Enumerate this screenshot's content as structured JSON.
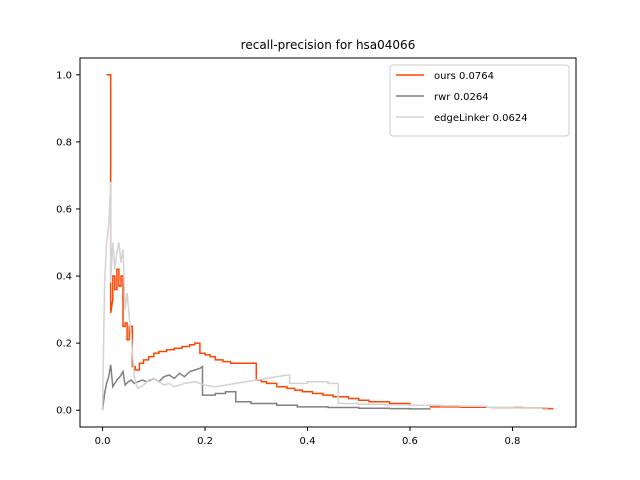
{
  "chart_data": {
    "type": "line",
    "title": "recall-precision for hsa04066",
    "xlabel": "",
    "ylabel": "",
    "xlim": [
      -0.044,
      0.924
    ],
    "ylim": [
      -0.05,
      1.05
    ],
    "xticks": [
      0.0,
      0.2,
      0.4,
      0.6,
      0.8
    ],
    "yticks": [
      0.0,
      0.2,
      0.4,
      0.6,
      0.8,
      1.0
    ],
    "xtick_labels": [
      "0.0",
      "0.2",
      "0.4",
      "0.6",
      "0.8"
    ],
    "ytick_labels": [
      "0.0",
      "0.2",
      "0.4",
      "0.6",
      "0.8",
      "1.0"
    ],
    "grid": false,
    "legend_position": "upper right",
    "series": [
      {
        "name": "ours 0.0764",
        "color": "#ff4500",
        "x": [
          0.008,
          0.008,
          0.016,
          0.016,
          0.016,
          0.016,
          0.02,
          0.02,
          0.024,
          0.024,
          0.028,
          0.028,
          0.032,
          0.032,
          0.036,
          0.036,
          0.04,
          0.04,
          0.044,
          0.044,
          0.048,
          0.048,
          0.052,
          0.052,
          0.058,
          0.058,
          0.064,
          0.064,
          0.072,
          0.072,
          0.08,
          0.08,
          0.09,
          0.09,
          0.1,
          0.1,
          0.11,
          0.11,
          0.125,
          0.125,
          0.14,
          0.14,
          0.155,
          0.155,
          0.17,
          0.17,
          0.18,
          0.18,
          0.19,
          0.19,
          0.2,
          0.2,
          0.21,
          0.21,
          0.22,
          0.22,
          0.235,
          0.235,
          0.25,
          0.25,
          0.27,
          0.27,
          0.3,
          0.3,
          0.31,
          0.31,
          0.32,
          0.32,
          0.34,
          0.34,
          0.36,
          0.36,
          0.375,
          0.375,
          0.39,
          0.39,
          0.41,
          0.41,
          0.43,
          0.43,
          0.45,
          0.45,
          0.48,
          0.48,
          0.5,
          0.5,
          0.52,
          0.52,
          0.56,
          0.56,
          0.6,
          0.6,
          0.64,
          0.64,
          0.7,
          0.7,
          0.76,
          0.76,
          0.82,
          0.82,
          0.86,
          0.86,
          0.88
        ],
        "y": [
          1.0,
          1.0,
          1.0,
          0.5,
          0.67,
          0.29,
          0.33,
          0.4,
          0.4,
          0.36,
          0.36,
          0.42,
          0.42,
          0.37,
          0.37,
          0.4,
          0.4,
          0.25,
          0.25,
          0.26,
          0.26,
          0.21,
          0.21,
          0.25,
          0.25,
          0.13,
          0.13,
          0.12,
          0.12,
          0.14,
          0.14,
          0.15,
          0.15,
          0.16,
          0.16,
          0.17,
          0.17,
          0.175,
          0.175,
          0.18,
          0.18,
          0.185,
          0.185,
          0.19,
          0.19,
          0.195,
          0.195,
          0.2,
          0.2,
          0.17,
          0.17,
          0.165,
          0.165,
          0.16,
          0.16,
          0.15,
          0.15,
          0.145,
          0.145,
          0.14,
          0.14,
          0.14,
          0.14,
          0.09,
          0.09,
          0.085,
          0.085,
          0.08,
          0.08,
          0.07,
          0.07,
          0.065,
          0.065,
          0.06,
          0.06,
          0.055,
          0.055,
          0.05,
          0.05,
          0.045,
          0.045,
          0.04,
          0.04,
          0.035,
          0.035,
          0.03,
          0.03,
          0.025,
          0.025,
          0.02,
          0.02,
          0.015,
          0.015,
          0.01,
          0.01,
          0.009,
          0.009,
          0.008,
          0.008,
          0.007,
          0.007,
          0.005,
          0.005
        ]
      },
      {
        "name": "rwr 0.0264",
        "color": "#808080",
        "x": [
          0.0,
          0.004,
          0.008,
          0.012,
          0.016,
          0.02,
          0.024,
          0.028,
          0.034,
          0.04,
          0.044,
          0.05,
          0.056,
          0.062,
          0.07,
          0.078,
          0.086,
          0.094,
          0.1,
          0.11,
          0.12,
          0.13,
          0.14,
          0.15,
          0.16,
          0.17,
          0.18,
          0.19,
          0.195,
          0.195,
          0.22,
          0.22,
          0.24,
          0.24,
          0.26,
          0.26,
          0.29,
          0.29,
          0.34,
          0.34,
          0.38,
          0.38,
          0.44,
          0.44,
          0.5,
          0.5,
          0.56,
          0.56,
          0.6,
          0.6,
          0.64
        ],
        "y": [
          0.0,
          0.05,
          0.08,
          0.1,
          0.135,
          0.07,
          0.08,
          0.09,
          0.1,
          0.115,
          0.075,
          0.085,
          0.09,
          0.08,
          0.085,
          0.09,
          0.085,
          0.09,
          0.095,
          0.085,
          0.1,
          0.105,
          0.095,
          0.11,
          0.1,
          0.115,
          0.12,
          0.125,
          0.13,
          0.045,
          0.045,
          0.05,
          0.05,
          0.055,
          0.055,
          0.025,
          0.025,
          0.02,
          0.02,
          0.015,
          0.015,
          0.01,
          0.01,
          0.008,
          0.008,
          0.006,
          0.006,
          0.005,
          0.005,
          0.004,
          0.004
        ]
      },
      {
        "name": "edgeLinker 0.0624",
        "color": "#d3d3d3",
        "x": [
          0.0,
          0.004,
          0.008,
          0.012,
          0.016,
          0.016,
          0.02,
          0.024,
          0.028,
          0.032,
          0.036,
          0.04,
          0.044,
          0.048,
          0.052,
          0.056,
          0.062,
          0.068,
          0.074,
          0.08,
          0.09,
          0.1,
          0.11,
          0.12,
          0.13,
          0.14,
          0.15,
          0.16,
          0.18,
          0.2,
          0.22,
          0.24,
          0.26,
          0.28,
          0.3,
          0.32,
          0.34,
          0.36,
          0.365,
          0.365,
          0.4,
          0.4,
          0.44,
          0.44,
          0.46,
          0.46,
          0.5,
          0.5,
          0.55,
          0.55,
          0.6,
          0.6,
          0.66,
          0.66,
          0.7,
          0.7,
          0.75,
          0.75,
          0.8,
          0.8,
          0.87
        ],
        "y": [
          0.0,
          0.38,
          0.5,
          0.55,
          0.68,
          0.38,
          0.5,
          0.42,
          0.47,
          0.5,
          0.44,
          0.48,
          0.3,
          0.35,
          0.28,
          0.22,
          0.1,
          0.065,
          0.07,
          0.075,
          0.09,
          0.095,
          0.085,
          0.075,
          0.08,
          0.07,
          0.075,
          0.08,
          0.085,
          0.075,
          0.07,
          0.075,
          0.08,
          0.085,
          0.09,
          0.095,
          0.1,
          0.105,
          0.105,
          0.08,
          0.08,
          0.085,
          0.085,
          0.08,
          0.08,
          0.02,
          0.02,
          0.018,
          0.018,
          0.016,
          0.016,
          0.015,
          0.015,
          0.013,
          0.013,
          0.012,
          0.012,
          0.009,
          0.009,
          0.007,
          0.007
        ]
      }
    ]
  }
}
